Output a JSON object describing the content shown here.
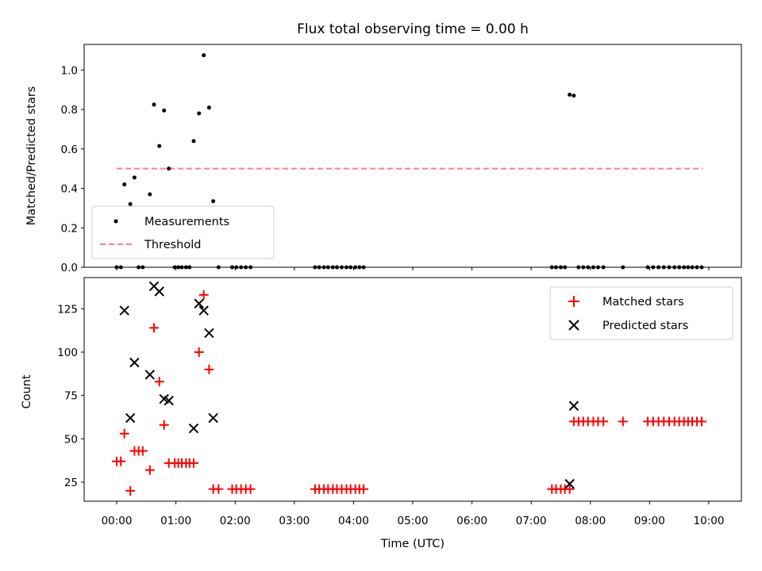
{
  "chart_data": [
    {
      "type": "scatter",
      "title": "Flux total observing time = 0.00 h",
      "xlabel": "",
      "ylabel": "Matched/Predicted stars",
      "xlim": [
        -0.55,
        10.55
      ],
      "ylim": [
        0,
        1.13
      ],
      "yticks": [
        0.0,
        0.2,
        0.4,
        0.6,
        0.8,
        1.0
      ],
      "ytick_labels": [
        "0.0",
        "0.2",
        "0.4",
        "0.6",
        "0.8",
        "1.0"
      ],
      "legend_position": "lower-left",
      "series": [
        {
          "name": "Measurements",
          "marker": "dot",
          "color": "#000000",
          "x": [
            0.0,
            0.07,
            0.13,
            0.23,
            0.3,
            0.37,
            0.44,
            0.56,
            0.63,
            0.72,
            0.8,
            0.88,
            0.98,
            1.04,
            1.1,
            1.17,
            1.23,
            1.3,
            1.39,
            1.47,
            1.56,
            1.63,
            1.72,
            1.95,
            2.02,
            2.1,
            2.18,
            2.26,
            3.35,
            3.42,
            3.5,
            3.57,
            3.65,
            3.72,
            3.8,
            3.88,
            3.95,
            4.03,
            4.1,
            4.17,
            7.35,
            7.42,
            7.5,
            7.57,
            7.65,
            7.72,
            7.8,
            7.88,
            7.96,
            8.05,
            8.13,
            8.22,
            8.55,
            8.97,
            9.06,
            9.15,
            9.24,
            9.33,
            9.42,
            9.5,
            9.58,
            9.65,
            9.72,
            9.8,
            9.88
          ],
          "y": [
            0.0,
            0.0,
            0.42,
            0.32,
            0.455,
            0.0,
            0.0,
            0.37,
            0.825,
            0.615,
            0.795,
            0.5,
            0.0,
            0.0,
            0.0,
            0.0,
            0.0,
            0.64,
            0.78,
            1.075,
            0.81,
            0.335,
            0.0,
            0.0,
            0.0,
            0.0,
            0.0,
            0.0,
            0.0,
            0.0,
            0.0,
            0.0,
            0.0,
            0.0,
            0.0,
            0.0,
            0.0,
            0.0,
            0.0,
            0.0,
            0.0,
            0.0,
            0.0,
            0.0,
            0.875,
            0.87,
            0.0,
            0.0,
            0.0,
            0.0,
            0.0,
            0.0,
            0.0,
            0.0,
            0.0,
            0.0,
            0.0,
            0.0,
            0.0,
            0.0,
            0.0,
            0.0,
            0.0,
            0.0,
            0.0
          ]
        },
        {
          "name": "Threshold",
          "marker": "dashed-line",
          "color": "#ff8080",
          "x": [
            0.0,
            9.9
          ],
          "y": [
            0.5,
            0.5
          ]
        }
      ]
    },
    {
      "type": "scatter",
      "title": "",
      "xlabel": "Time (UTC)",
      "ylabel": "Count",
      "xlim": [
        -0.55,
        10.55
      ],
      "ylim": [
        14,
        143
      ],
      "yticks": [
        25,
        50,
        75,
        100,
        125
      ],
      "ytick_labels": [
        "25",
        "50",
        "75",
        "100",
        "125"
      ],
      "xticks": [
        0,
        1,
        2,
        3,
        4,
        5,
        6,
        7,
        8,
        9,
        10
      ],
      "xtick_labels": [
        "00:00",
        "01:00",
        "02:00",
        "03:00",
        "04:00",
        "05:00",
        "06:00",
        "07:00",
        "08:00",
        "09:00",
        "10:00"
      ],
      "legend_position": "top-right",
      "series": [
        {
          "name": "Matched stars",
          "marker": "plus",
          "color": "#ff0000",
          "x": [
            0.0,
            0.07,
            0.13,
            0.23,
            0.3,
            0.37,
            0.44,
            0.56,
            0.63,
            0.72,
            0.8,
            0.88,
            0.98,
            1.04,
            1.1,
            1.17,
            1.23,
            1.3,
            1.39,
            1.47,
            1.56,
            1.63,
            1.72,
            1.95,
            2.02,
            2.1,
            2.18,
            2.26,
            3.35,
            3.42,
            3.5,
            3.57,
            3.65,
            3.72,
            3.8,
            3.88,
            3.95,
            4.03,
            4.1,
            4.17,
            7.35,
            7.42,
            7.5,
            7.57,
            7.65,
            7.72,
            7.8,
            7.88,
            7.96,
            8.05,
            8.13,
            8.22,
            8.55,
            8.97,
            9.06,
            9.15,
            9.24,
            9.33,
            9.42,
            9.5,
            9.58,
            9.65,
            9.72,
            9.8,
            9.88
          ],
          "y": [
            37,
            37,
            53,
            20,
            43,
            43,
            43,
            32,
            114,
            83,
            58,
            36,
            36,
            36,
            36,
            36,
            36,
            36,
            100,
            133,
            90,
            21,
            21,
            21,
            21,
            21,
            21,
            21,
            21,
            21,
            21,
            21,
            21,
            21,
            21,
            21,
            21,
            21,
            21,
            21,
            21,
            21,
            21,
            21,
            21,
            60,
            60,
            60,
            60,
            60,
            60,
            60,
            60,
            60,
            60,
            60,
            60,
            60,
            60,
            60,
            60,
            60,
            60,
            60,
            60
          ]
        },
        {
          "name": "Predicted stars",
          "marker": "x",
          "color": "#000000",
          "x": [
            0.13,
            0.23,
            0.3,
            0.56,
            0.63,
            0.72,
            0.8,
            0.88,
            1.3,
            1.39,
            1.47,
            1.56,
            1.63,
            7.65,
            7.72
          ],
          "y": [
            124,
            62,
            94,
            87,
            138,
            135,
            73,
            72,
            56,
            128,
            124,
            111,
            62,
            24,
            69
          ]
        }
      ]
    }
  ]
}
